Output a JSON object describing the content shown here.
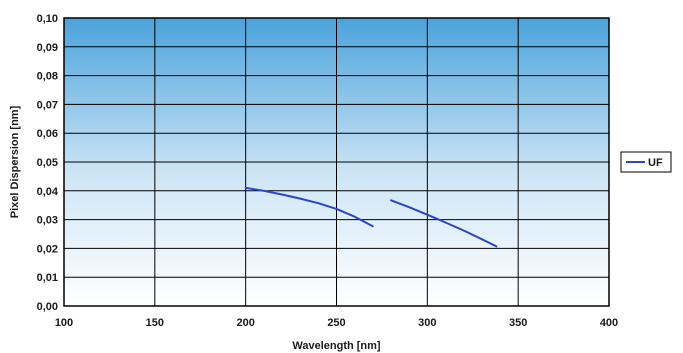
{
  "chart_data": {
    "type": "line",
    "xlabel": "Wavelength [nm]",
    "ylabel": "Pixel Dispersion [nm]",
    "xlim": [
      100,
      400
    ],
    "ylim": [
      0.0,
      0.1
    ],
    "x_ticks": [
      "100",
      "150",
      "200",
      "250",
      "300",
      "350",
      "400"
    ],
    "y_ticks": [
      "0,00",
      "0,01",
      "0,02",
      "0,03",
      "0,04",
      "0,05",
      "0,06",
      "0,07",
      "0,08",
      "0,09",
      "0,10"
    ],
    "grid": true,
    "legend_position": "right",
    "colors": {
      "line": "#2a46c8",
      "background_top": "#4aa3dc",
      "background_bottom": "#ffffff",
      "grid": "#000000"
    },
    "series": [
      {
        "name": "UF",
        "segments": [
          {
            "x": [
              200,
              210,
              220,
              230,
              240,
              250,
              260,
              270
            ],
            "y": [
              0.041,
              0.04,
              0.0387,
              0.0373,
              0.0357,
              0.0337,
              0.031,
              0.0277
            ]
          },
          {
            "x": [
              280,
              290,
              300,
              310,
              320,
              330,
              338
            ],
            "y": [
              0.0367,
              0.0343,
              0.0317,
              0.029,
              0.0262,
              0.0232,
              0.0207
            ]
          }
        ]
      }
    ]
  }
}
